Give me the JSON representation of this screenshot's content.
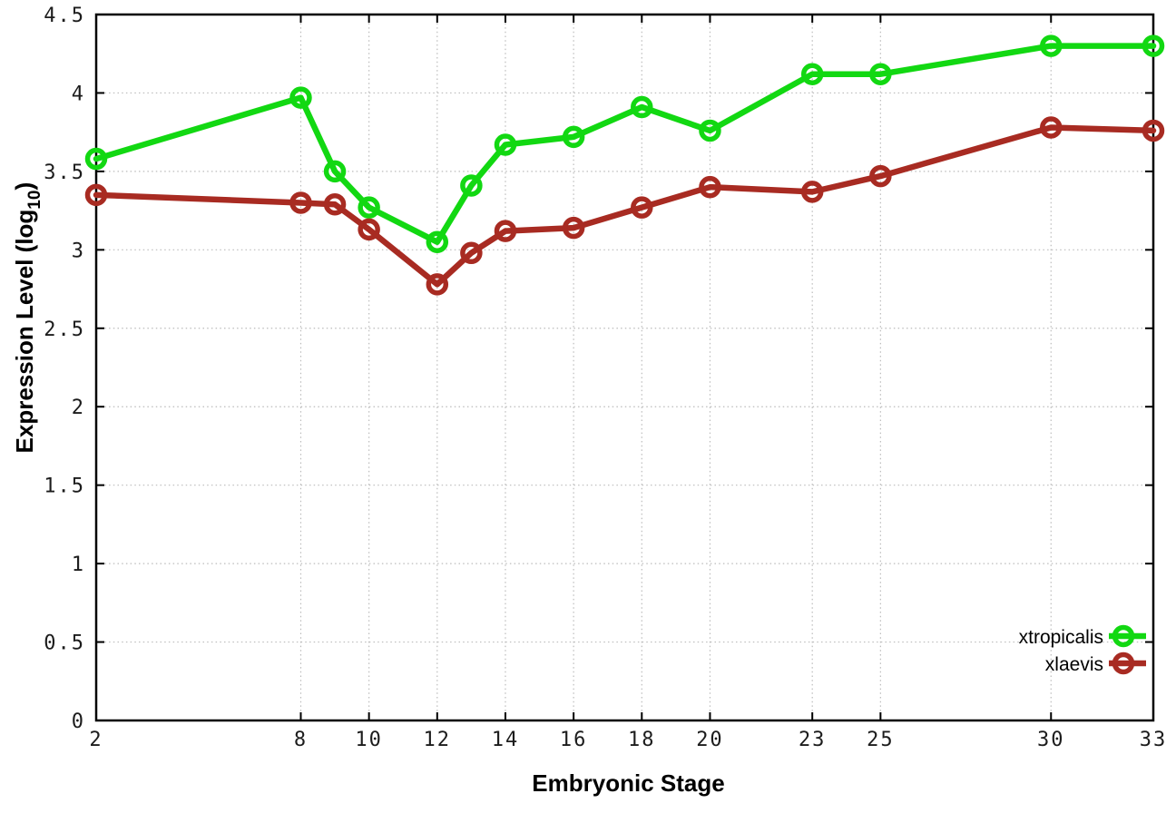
{
  "chart_data": {
    "type": "line",
    "title": "",
    "xlabel": "Embryonic Stage",
    "ylabel": "Expression Level (log10)",
    "ylabel_parts": {
      "prefix": "Expression Level (log",
      "sub": "10",
      "suffix": ")"
    },
    "xlim": [
      2,
      33
    ],
    "ylim": [
      0,
      4.5
    ],
    "xticks": [
      2,
      8,
      10,
      12,
      14,
      16,
      18,
      20,
      23,
      25,
      30,
      33
    ],
    "yticks": [
      0,
      0.5,
      1,
      1.5,
      2,
      2.5,
      3,
      3.5,
      4,
      4.5
    ],
    "grid": true,
    "legend_position": "bottom-right",
    "x": [
      2,
      8,
      9,
      10,
      12,
      13,
      14,
      16,
      18,
      20,
      23,
      25,
      30,
      33
    ],
    "series": [
      {
        "name": "xtropicalis",
        "color": "#12d812",
        "values": [
          3.58,
          3.97,
          3.5,
          3.27,
          3.05,
          3.41,
          3.67,
          3.72,
          3.91,
          3.76,
          4.12,
          4.12,
          4.3,
          4.3
        ]
      },
      {
        "name": "xlaevis",
        "color": "#a82b22",
        "values": [
          3.35,
          3.3,
          3.29,
          3.13,
          2.78,
          2.98,
          3.12,
          3.14,
          3.27,
          3.4,
          3.37,
          3.47,
          3.78,
          3.76
        ]
      }
    ],
    "marker": "open-circle",
    "colors": {
      "grid": "#bbbbbb",
      "border": "#000000",
      "tick_text": "#1c1c1c"
    }
  }
}
